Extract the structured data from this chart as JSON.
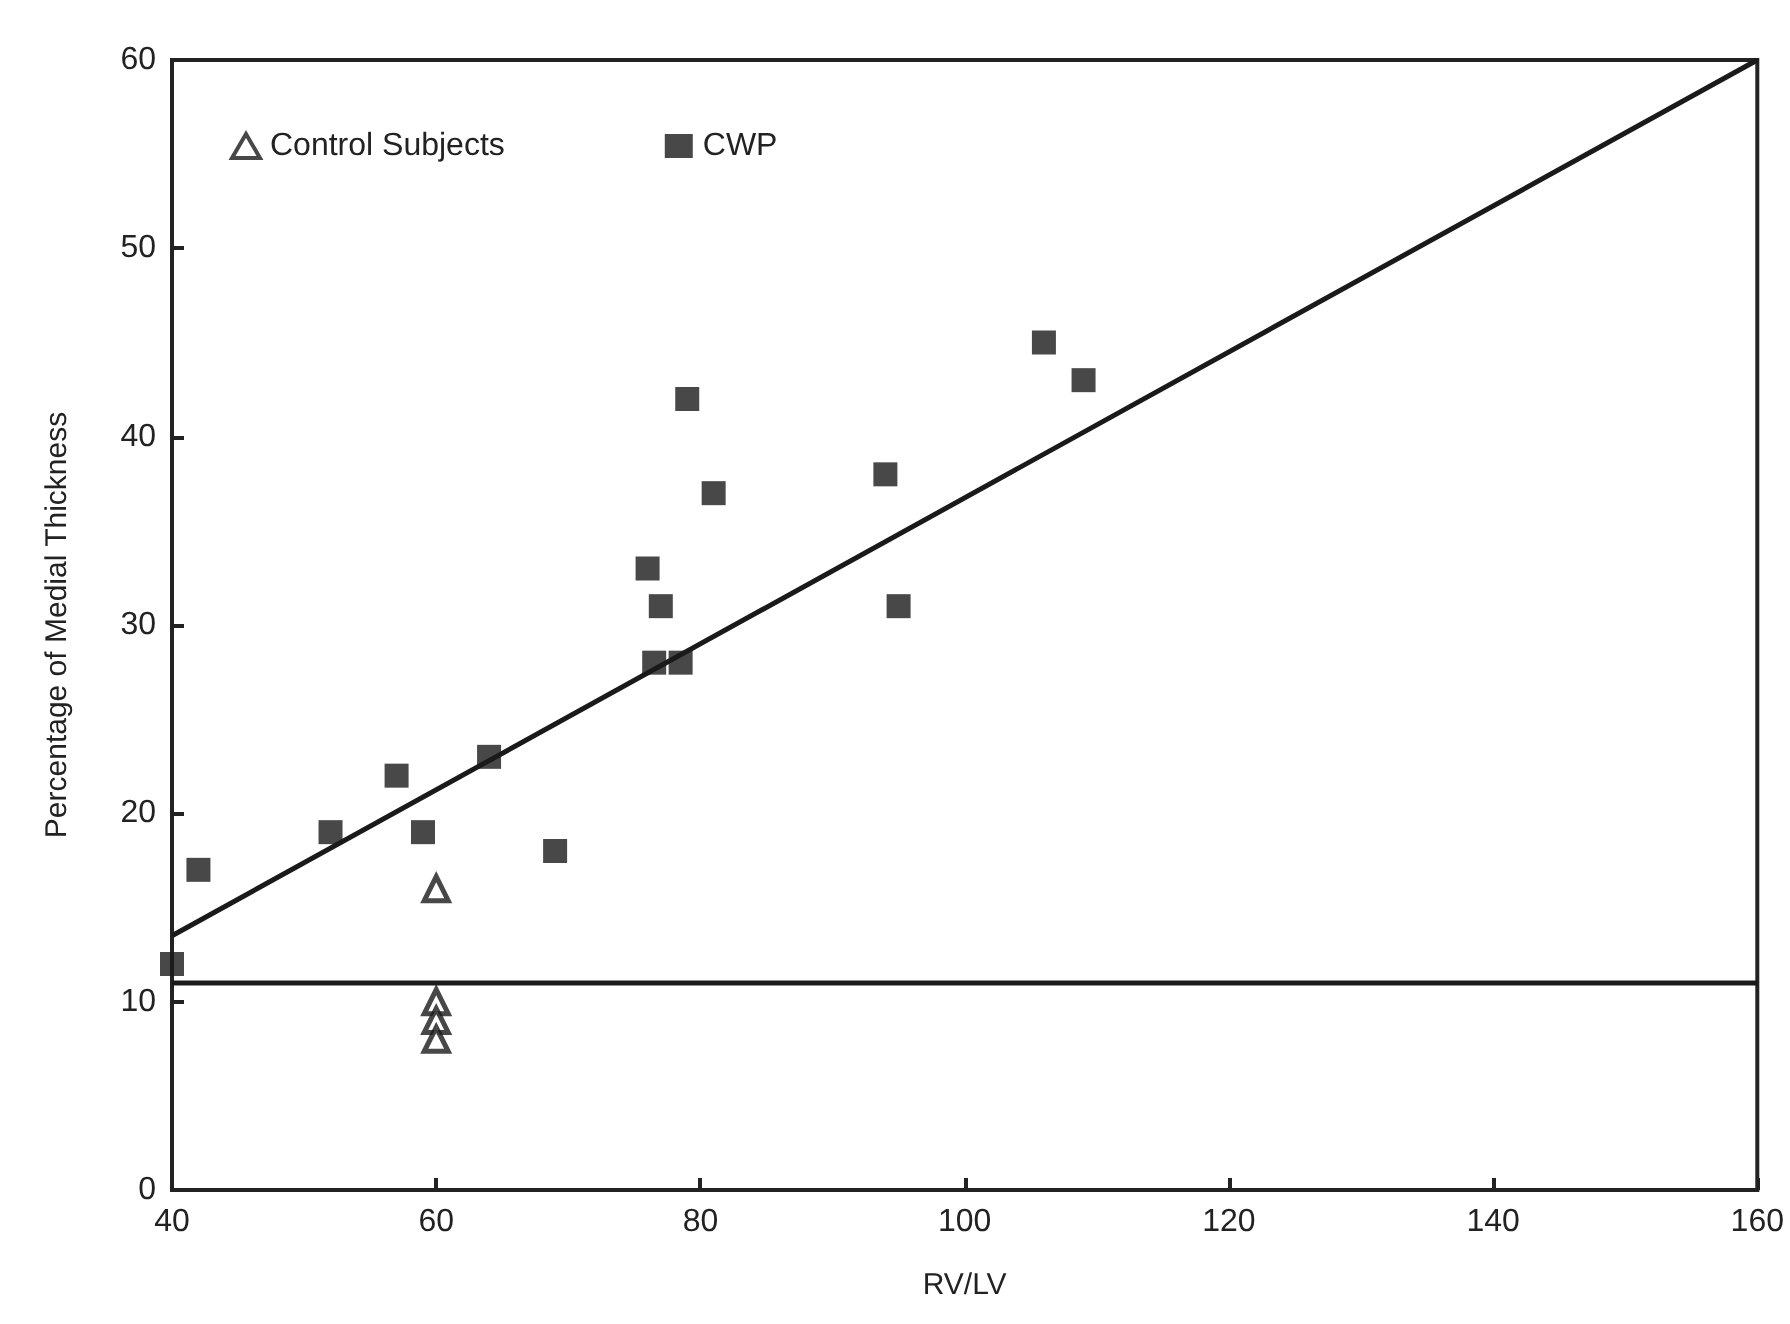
{
  "chart_data": {
    "type": "scatter",
    "xlabel": "RV/LV",
    "ylabel": "Percentage of Medial Thickness",
    "xlim": [
      40,
      160
    ],
    "ylim": [
      0,
      60
    ],
    "xticks": [
      40,
      60,
      80,
      100,
      120,
      140,
      160
    ],
    "yticks": [
      0,
      10,
      20,
      30,
      40,
      50,
      60
    ],
    "grid": false,
    "legend": "top left",
    "series": [
      {
        "name": "Control Subjects",
        "color": "#1a1a1a",
        "marker": "triangle",
        "x": [
          60,
          60,
          60,
          60
        ],
        "values": [
          16,
          10,
          9,
          8
        ]
      },
      {
        "name": "CWP",
        "color": "#1a1a1a",
        "marker": "square",
        "x": [
          40,
          42,
          52,
          57,
          59,
          64,
          69,
          76,
          77,
          76.5,
          78.5,
          79,
          81,
          94,
          95,
          106,
          109
        ],
        "values": [
          12,
          17,
          19,
          22,
          19,
          23,
          18,
          33,
          31,
          28,
          28,
          42,
          37,
          38,
          31,
          45,
          43
        ]
      },
      {
        "type": "line",
        "color": "#1a1a1a",
        "marker": "none",
        "x": [
          40,
          160
        ],
        "values": [
          13.5,
          60
        ]
      }
    ],
    "ref_lines": [
      {
        "axis": "y",
        "value": 11,
        "color": "#1a1a1a"
      }
    ]
  }
}
